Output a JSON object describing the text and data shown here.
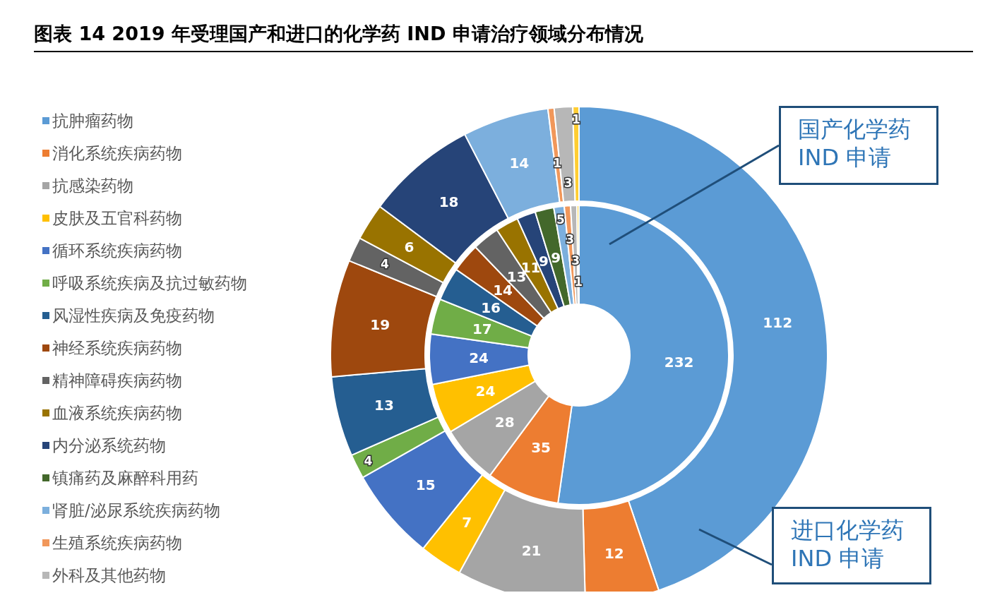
{
  "chart_data": {
    "type": "donut",
    "title": "图表 14 2019 年受理国产和进口的化学药 IND 申请治疗领域分布情况",
    "categories": [
      "抗肿瘤药物",
      "消化系统疾病药物",
      "抗感染药物",
      "皮肤及五官科药物",
      "循环系统疾病药物",
      "呼吸系统疾病及抗过敏药物",
      "风湿性疾病及免疫药物",
      "神经系统疾病药物",
      "精神障碍疾病药物",
      "血液系统疾病药物",
      "内分泌系统药物",
      "镇痛药及麻醉科用药",
      "肾脏/泌尿系统疾病药物",
      "生殖系统疾病药物",
      "外科及其他药物",
      null
    ],
    "colors": [
      "#5b9bd5",
      "#ed7d31",
      "#a5a5a5",
      "#ffc000",
      "#4472c4",
      "#70ad47",
      "#255e91",
      "#9e480e",
      "#636363",
      "#997300",
      "#264478",
      "#43682b",
      "#7cafdd",
      "#f1975a",
      "#b7b7b7",
      "#ffcd33"
    ],
    "series": [
      {
        "name": "国产化学药 IND 申请",
        "values": [
          232,
          35,
          28,
          24,
          24,
          17,
          16,
          14,
          13,
          11,
          9,
          9,
          5,
          3,
          3,
          1
        ]
      },
      {
        "name": "进口化学药 IND 申请",
        "values": [
          112,
          12,
          21,
          7,
          15,
          4,
          13,
          19,
          4,
          6,
          18,
          null,
          14,
          1,
          3,
          1
        ]
      }
    ],
    "legend": "left",
    "data_labels": true
  }
}
